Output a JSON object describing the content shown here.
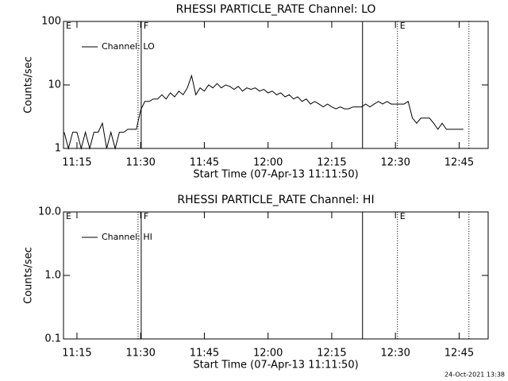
{
  "chart_data": [
    {
      "type": "line",
      "title": "RHESSI PARTICLE_RATE Channel: LO",
      "xlabel": "Start Time (07-Apr-13 11:11:50)",
      "ylabel": "Counts/sec",
      "log_y": true,
      "ylim": [
        1,
        100
      ],
      "yticks": [
        1,
        10,
        100
      ],
      "xlim": [
        "11:11:50",
        "12:51:50"
      ],
      "xticks": [
        "11:15",
        "11:30",
        "11:45",
        "12:00",
        "12:15",
        "12:30",
        "12:45"
      ],
      "legend": "top-left",
      "markers": [
        {
          "x": "11:29:23",
          "style": "dotted"
        },
        {
          "x": "11:30:08",
          "style": "solid"
        },
        {
          "x": "12:22:15",
          "style": "solid"
        },
        {
          "x": "12:30:28",
          "style": "dotted"
        },
        {
          "x": "12:47:18",
          "style": "dotted"
        }
      ],
      "annotations": [
        {
          "text": "E",
          "x": "11:11:50"
        },
        {
          "text": "F",
          "x": "11:30:08"
        },
        {
          "text": "E",
          "x": "12:30:28"
        }
      ],
      "series": [
        {
          "name": "Channel: LO",
          "color": "#000000",
          "x": [
            "11:12",
            "11:13",
            "11:14",
            "11:15",
            "11:16",
            "11:17",
            "11:18",
            "11:19",
            "11:20",
            "11:21",
            "11:22",
            "11:23",
            "11:24",
            "11:25",
            "11:26",
            "11:27",
            "11:28",
            "11:29",
            "11:30",
            "11:31",
            "11:32",
            "11:33",
            "11:34",
            "11:35",
            "11:36",
            "11:37",
            "11:38",
            "11:39",
            "11:40",
            "11:41",
            "11:42",
            "11:43",
            "11:44",
            "11:45",
            "11:46",
            "11:47",
            "11:48",
            "11:49",
            "11:50",
            "11:51",
            "11:52",
            "11:53",
            "11:54",
            "11:55",
            "11:56",
            "11:57",
            "11:58",
            "11:59",
            "12:00",
            "12:01",
            "12:02",
            "12:03",
            "12:04",
            "12:05",
            "12:06",
            "12:07",
            "12:08",
            "12:09",
            "12:10",
            "12:11",
            "12:12",
            "12:13",
            "12:14",
            "12:15",
            "12:16",
            "12:17",
            "12:18",
            "12:19",
            "12:20",
            "12:21",
            "12:22",
            "12:23",
            "12:24",
            "12:25",
            "12:26",
            "12:27",
            "12:28",
            "12:29",
            "12:30",
            "12:31",
            "12:32",
            "12:33",
            "12:34",
            "12:35",
            "12:36",
            "12:37",
            "12:38",
            "12:39",
            "12:40",
            "12:41",
            "12:42",
            "12:43",
            "12:44",
            "12:45",
            "12:46"
          ],
          "values": [
            1.8,
            1,
            1.8,
            1.8,
            1,
            1.8,
            1,
            1.8,
            1.8,
            2.5,
            1,
            1.8,
            1,
            1.8,
            1.8,
            2,
            2,
            2,
            4,
            5.5,
            5.5,
            6,
            6,
            7,
            6,
            7.5,
            6.5,
            8,
            7,
            9,
            14,
            7,
            9,
            8,
            10,
            9,
            10.5,
            9,
            10,
            9.5,
            8.5,
            9.5,
            8,
            9,
            8.5,
            9,
            8,
            8.5,
            7.5,
            8,
            7,
            7.5,
            6.5,
            7,
            6,
            6.5,
            5.5,
            6,
            5,
            5.5,
            5,
            4.5,
            5,
            4.5,
            4.2,
            4.5,
            4.2,
            4.2,
            4.5,
            4.5,
            4.5,
            5,
            4.5,
            5,
            5.5,
            5,
            5.5,
            5,
            5,
            5,
            5,
            5.5,
            3,
            2.5,
            3,
            3,
            3,
            2.5,
            2,
            2.5,
            2,
            2,
            2,
            2,
            2
          ]
        }
      ]
    },
    {
      "type": "line",
      "title": "RHESSI PARTICLE_RATE Channel: HI",
      "xlabel": "Start Time (07-Apr-13 11:11:50)",
      "ylabel": "Counts/sec",
      "log_y": true,
      "ylim": [
        0.1,
        10
      ],
      "yticks": [
        0.1,
        {
          "value": 1,
          "label": "1.0"
        },
        {
          "value": 10,
          "label": "10.0"
        }
      ],
      "xlim": [
        "11:11:50",
        "12:51:50"
      ],
      "xticks": [
        "11:15",
        "11:30",
        "11:45",
        "12:00",
        "12:15",
        "12:30",
        "12:45"
      ],
      "legend": "top-left",
      "markers": [
        {
          "x": "11:29:23",
          "style": "dotted"
        },
        {
          "x": "11:30:08",
          "style": "solid"
        },
        {
          "x": "12:22:15",
          "style": "solid"
        },
        {
          "x": "12:30:28",
          "style": "dotted"
        },
        {
          "x": "12:47:18",
          "style": "dotted"
        }
      ],
      "annotations": [
        {
          "text": "E",
          "x": "11:11:50"
        },
        {
          "text": "F",
          "x": "11:30:08"
        },
        {
          "text": "E",
          "x": "12:30:28"
        }
      ],
      "series": [
        {
          "name": "Channel: HI",
          "color": "#000000",
          "x": [],
          "values": []
        }
      ]
    }
  ],
  "footer": "24-Oct-2021 13:38"
}
